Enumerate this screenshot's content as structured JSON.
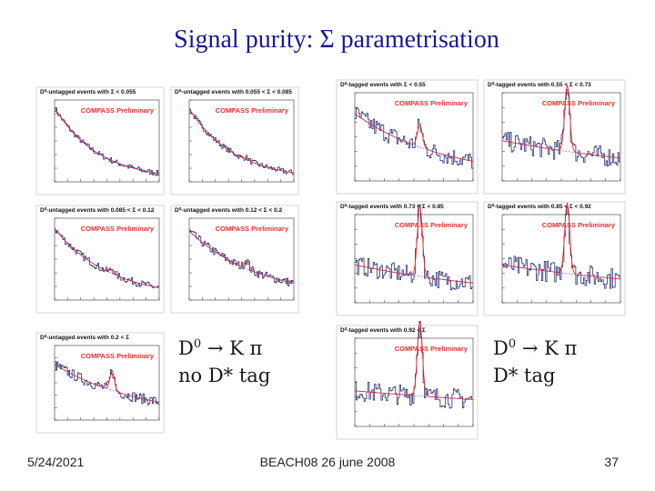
{
  "header": {
    "title": "Signal purity: Σ parametrisation"
  },
  "plots": [
    {
      "title": "D⁰-untagged events with Σ < 0.055",
      "label": "COMPASS Preliminary"
    },
    {
      "title": "D⁰-untagged events with 0.055 < Σ < 0.085",
      "label": "COMPASS Preliminary"
    },
    {
      "title": "D⁰-untagged events with 0.085 < Σ < 0.12",
      "label": "COMPASS Preliminary"
    },
    {
      "title": "D⁰-untagged events with 0.12 < Σ < 0.2",
      "label": "COMPASS Preliminary"
    },
    {
      "title": "D⁰-untagged events with 0.2 < Σ",
      "label": "COMPASS Preliminary"
    },
    {
      "title": "D⁰-tagged events with Σ < 0.55",
      "label": "COMPASS Preliminary"
    },
    {
      "title": "D⁰-tagged events with 0.55 < Σ < 0.73",
      "label": "COMPASS Preliminary"
    },
    {
      "title": "D⁰-tagged events with 0.73 < Σ < 0.85",
      "label": "COMPASS Preliminary"
    },
    {
      "title": "D⁰-tagged events with 0.85 < Σ < 0.92",
      "label": "COMPASS Preliminary"
    },
    {
      "title": "D⁰-tagged events with 0.92 < Σ",
      "label": "COMPASS Preliminary"
    }
  ],
  "boxes": [
    {
      "particle": "D",
      "superscript": "0",
      "decay": "→ K π",
      "tag": "no D* tag"
    },
    {
      "particle": "D",
      "superscript": "0",
      "decay": "→ K π",
      "tag": "D* tag"
    }
  ],
  "footer": {
    "date": "5/24/2021",
    "text": "BEACH08 26 june 2008",
    "page": "37"
  }
}
